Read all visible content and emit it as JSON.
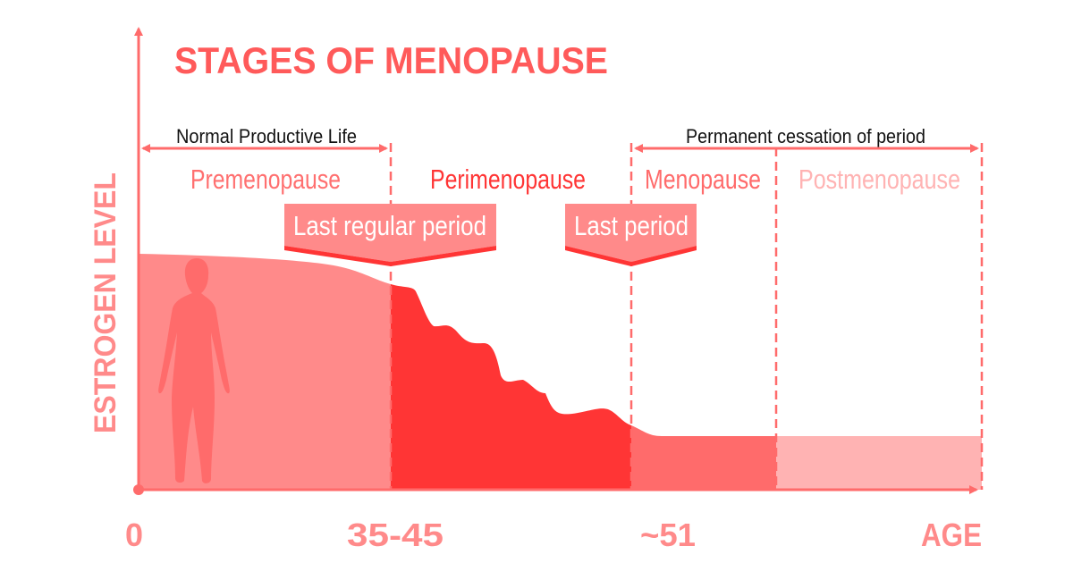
{
  "title": "STAGES OF MENOPAUSE",
  "y_axis_label": "ESTROGEN LEVEL",
  "x_axis_label": "AGE",
  "x_ticks": [
    "0",
    "35-45",
    "~51"
  ],
  "spans": {
    "normal_productive_life": "Normal Productive Life",
    "permanent_cessation": "Permanent cessation of period"
  },
  "stages": [
    "Premenopause",
    "Perimenopause",
    "Menopause",
    "Postmenopause"
  ],
  "markers": {
    "last_regular_period": "Last regular period",
    "last_period": "Last period"
  },
  "colors": {
    "premenopause": "#ff8a8a",
    "perimenopause": "#ff3535",
    "menopause": "#ff6b6b",
    "postmenopause": "#ffb3b3",
    "axis": "#ff6b6b",
    "title": "#ff5a5a"
  }
}
